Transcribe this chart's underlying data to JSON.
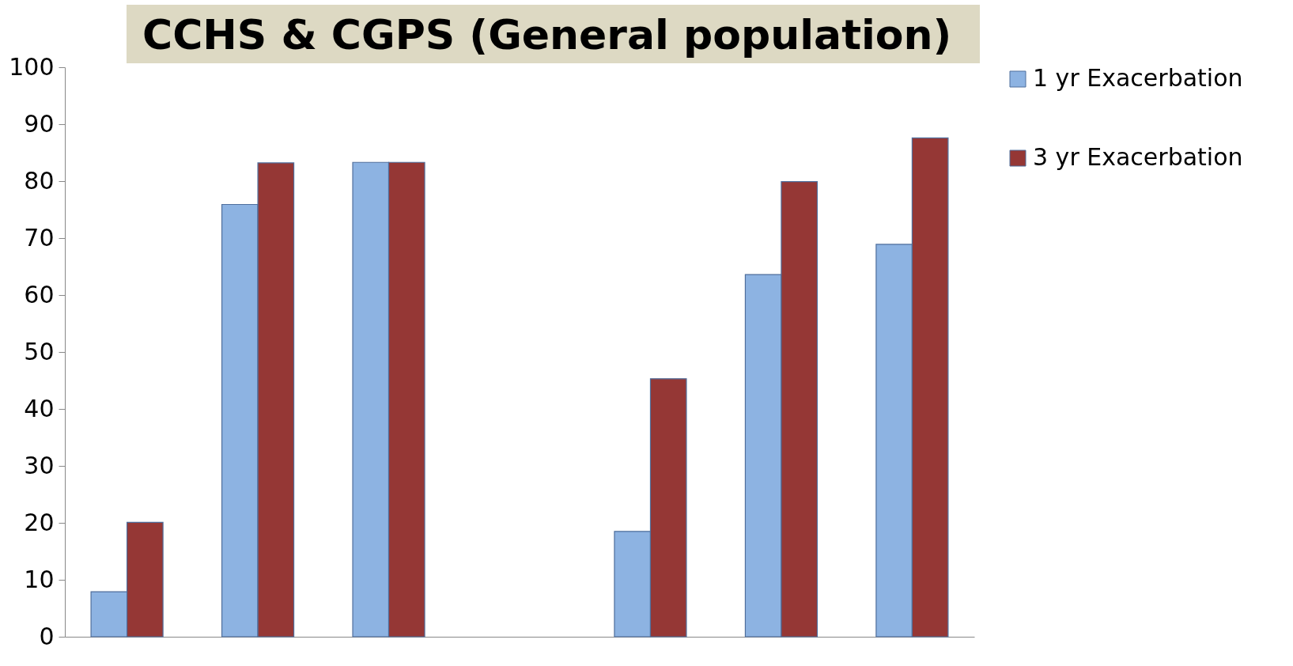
{
  "chart_data": {
    "type": "bar",
    "title": "CCHS & CGPS (General population)",
    "categories": [
      null,
      null,
      null,
      null,
      null,
      null,
      null
    ],
    "series": [
      {
        "name": "1 yr Exacerbation",
        "color": "#8db3e2",
        "values": [
          7.9,
          75.9,
          83.3,
          null,
          18.5,
          63.6,
          68.9
        ]
      },
      {
        "name": "3 yr Exacerbation",
        "color": "#953735",
        "values": [
          20.1,
          83.2,
          83.3,
          null,
          45.3,
          79.9,
          87.6
        ]
      }
    ],
    "ylim": [
      0,
      100
    ],
    "yticks": [
      0,
      10,
      20,
      30,
      40,
      50,
      60,
      70,
      80,
      90,
      100
    ],
    "grid": false,
    "legend": "right"
  }
}
